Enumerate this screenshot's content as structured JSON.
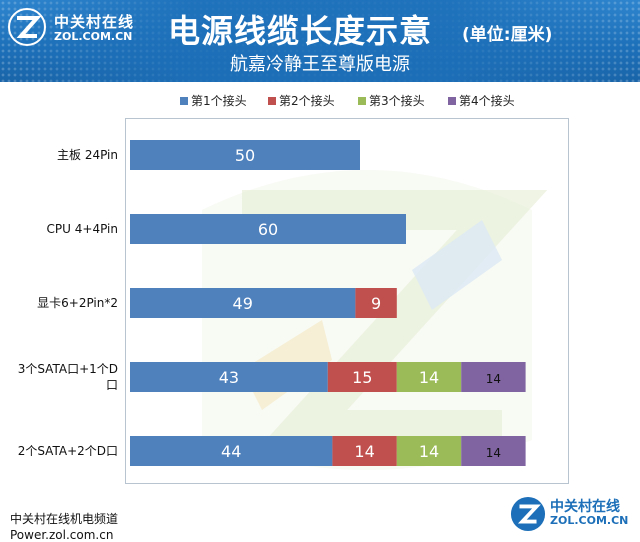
{
  "brand": {
    "logo_cn": "中关村在线",
    "logo_en": "ZOL.COM.CN"
  },
  "header": {
    "title": "电源线缆长度示意",
    "title_unit": "(单位:厘米)",
    "subtitle": "航嘉冷静王至尊版电源"
  },
  "footer": {
    "channel": "中关村在线机电频道",
    "site": "Power.zol.com.cn",
    "logo_cn": "中关村在线",
    "logo_en": "ZOL.COM.CN"
  },
  "colors": {
    "series1": "#4f81bd",
    "series2": "#c0504d",
    "series3": "#9bbb59",
    "series4": "#8064a2",
    "header_bg": "#1c6fb8"
  },
  "chart_data": {
    "type": "bar",
    "orientation": "horizontal",
    "stacked": true,
    "categories": [
      [
        "主板 24Pin"
      ],
      [
        "CPU 4+4Pin"
      ],
      [
        "显卡6+2Pin*2"
      ],
      [
        "3个SATA口+1个D",
        "口"
      ],
      [
        "2个SATA+2个D口"
      ]
    ],
    "series": [
      {
        "name": "第1个接头",
        "color": "#4f81bd",
        "values": [
          50,
          60,
          49,
          43,
          44
        ]
      },
      {
        "name": "第2个接头",
        "color": "#c0504d",
        "values": [
          null,
          null,
          9,
          15,
          14
        ]
      },
      {
        "name": "第3个接头",
        "color": "#9bbb59",
        "values": [
          null,
          null,
          null,
          14,
          14
        ]
      },
      {
        "name": "第4个接头",
        "color": "#8064a2",
        "values": [
          null,
          null,
          null,
          14,
          14
        ]
      }
    ],
    "xlim": [
      0,
      85
    ],
    "grid": false,
    "legend_position": "top",
    "show_data_labels": true
  }
}
